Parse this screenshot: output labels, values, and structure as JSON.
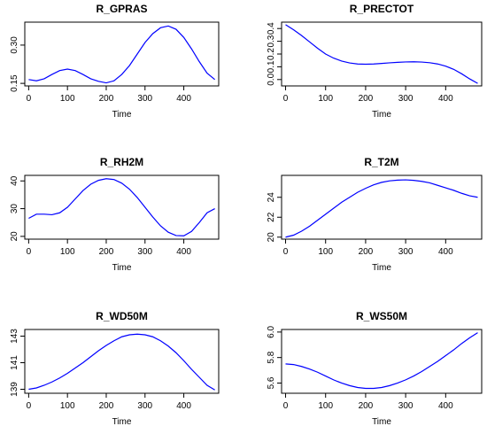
{
  "chart_data": [
    {
      "type": "line",
      "title": "R_GPRAS",
      "xlabel": "Time",
      "ylabel": "",
      "xlim": [
        -10,
        490
      ],
      "ylim": [
        0.14,
        0.39
      ],
      "xticks": [
        0,
        100,
        200,
        300,
        400
      ],
      "yticks": [
        0.15,
        0.3
      ],
      "ytick_labels": [
        "0.15",
        "0.30"
      ],
      "series": [
        {
          "x": [
            0,
            20,
            40,
            60,
            80,
            100,
            120,
            140,
            160,
            180,
            200,
            220,
            240,
            260,
            280,
            300,
            320,
            340,
            360,
            380,
            400,
            420,
            440,
            460,
            480
          ],
          "values": [
            0.165,
            0.16,
            0.168,
            0.185,
            0.2,
            0.206,
            0.2,
            0.185,
            0.168,
            0.158,
            0.152,
            0.16,
            0.185,
            0.22,
            0.265,
            0.31,
            0.345,
            0.368,
            0.375,
            0.362,
            0.33,
            0.285,
            0.235,
            0.19,
            0.165
          ]
        }
      ]
    },
    {
      "type": "line",
      "title": "R_PRECTOT",
      "xlabel": "Time",
      "ylabel": "",
      "xlim": [
        -10,
        490
      ],
      "ylim": [
        -0.05,
        0.45
      ],
      "xticks": [
        0,
        100,
        200,
        300,
        400
      ],
      "yticks": [
        0.0,
        0.1,
        0.2,
        0.3,
        0.4
      ],
      "ytick_labels": [
        "0.0",
        "0.1",
        "0.2",
        "0.3",
        "0.4"
      ],
      "series": [
        {
          "x": [
            0,
            20,
            40,
            60,
            80,
            100,
            120,
            140,
            160,
            180,
            200,
            220,
            240,
            260,
            280,
            300,
            320,
            340,
            360,
            380,
            400,
            420,
            440,
            460,
            480
          ],
          "values": [
            0.43,
            0.39,
            0.345,
            0.295,
            0.245,
            0.2,
            0.168,
            0.145,
            0.13,
            0.122,
            0.12,
            0.122,
            0.126,
            0.131,
            0.135,
            0.138,
            0.139,
            0.137,
            0.132,
            0.122,
            0.105,
            0.08,
            0.045,
            0.005,
            -0.03
          ]
        }
      ]
    },
    {
      "type": "line",
      "title": "R_RH2M",
      "xlabel": "Time",
      "ylabel": "",
      "xlim": [
        -10,
        490
      ],
      "ylim": [
        19,
        42
      ],
      "xticks": [
        0,
        100,
        200,
        300,
        400
      ],
      "yticks": [
        20,
        30,
        40
      ],
      "ytick_labels": [
        "20",
        "30",
        "40"
      ],
      "series": [
        {
          "x": [
            0,
            20,
            40,
            60,
            80,
            100,
            120,
            140,
            160,
            180,
            200,
            220,
            240,
            260,
            280,
            300,
            320,
            340,
            360,
            380,
            400,
            420,
            440,
            460,
            480
          ],
          "values": [
            26.5,
            28.0,
            28.0,
            27.8,
            28.5,
            30.5,
            33.5,
            36.5,
            38.8,
            40.2,
            40.8,
            40.5,
            39.2,
            37.0,
            34.0,
            30.5,
            27.0,
            23.8,
            21.5,
            20.3,
            20.2,
            21.8,
            25.0,
            28.5,
            30.0
          ]
        }
      ]
    },
    {
      "type": "line",
      "title": "R_T2M",
      "xlabel": "Time",
      "ylabel": "",
      "xlim": [
        -10,
        490
      ],
      "ylim": [
        19.8,
        26.2
      ],
      "xticks": [
        0,
        100,
        200,
        300,
        400
      ],
      "yticks": [
        20,
        22,
        24
      ],
      "ytick_labels": [
        "20",
        "22",
        "24"
      ],
      "series": [
        {
          "x": [
            0,
            20,
            40,
            60,
            80,
            100,
            120,
            140,
            160,
            180,
            200,
            220,
            240,
            260,
            280,
            300,
            320,
            340,
            360,
            380,
            400,
            420,
            440,
            460,
            480
          ],
          "values": [
            20.0,
            20.2,
            20.6,
            21.1,
            21.7,
            22.3,
            22.9,
            23.5,
            24.0,
            24.5,
            24.9,
            25.25,
            25.5,
            25.65,
            25.72,
            25.75,
            25.7,
            25.6,
            25.45,
            25.2,
            24.95,
            24.7,
            24.4,
            24.15,
            24.0
          ]
        }
      ]
    },
    {
      "type": "line",
      "title": "R_WD50M",
      "xlabel": "Time",
      "ylabel": "",
      "xlim": [
        -10,
        490
      ],
      "ylim": [
        138.7,
        143.5
      ],
      "xticks": [
        0,
        100,
        200,
        300,
        400
      ],
      "yticks": [
        139,
        141,
        143
      ],
      "ytick_labels": [
        "139",
        "141",
        "143"
      ],
      "series": [
        {
          "x": [
            0,
            20,
            40,
            60,
            80,
            100,
            120,
            140,
            160,
            180,
            200,
            220,
            240,
            260,
            280,
            300,
            320,
            340,
            360,
            380,
            400,
            420,
            440,
            460,
            480
          ],
          "values": [
            139.0,
            139.1,
            139.3,
            139.55,
            139.85,
            140.2,
            140.6,
            141.0,
            141.45,
            141.9,
            142.3,
            142.65,
            142.95,
            143.1,
            143.15,
            143.1,
            142.95,
            142.65,
            142.25,
            141.75,
            141.15,
            140.5,
            139.9,
            139.3,
            138.95
          ]
        }
      ]
    },
    {
      "type": "line",
      "title": "R_WS50M",
      "xlabel": "Time",
      "ylabel": "",
      "xlim": [
        -10,
        490
      ],
      "ylim": [
        5.52,
        6.02
      ],
      "xticks": [
        0,
        100,
        200,
        300,
        400
      ],
      "yticks": [
        5.6,
        5.8,
        6.0
      ],
      "ytick_labels": [
        "5.6",
        "5.8",
        "6.0"
      ],
      "series": [
        {
          "x": [
            0,
            20,
            40,
            60,
            80,
            100,
            120,
            140,
            160,
            180,
            200,
            220,
            240,
            260,
            280,
            300,
            320,
            340,
            360,
            380,
            400,
            420,
            440,
            460,
            480
          ],
          "values": [
            5.75,
            5.745,
            5.73,
            5.71,
            5.685,
            5.655,
            5.625,
            5.6,
            5.58,
            5.565,
            5.558,
            5.558,
            5.565,
            5.58,
            5.6,
            5.625,
            5.655,
            5.69,
            5.73,
            5.77,
            5.815,
            5.86,
            5.91,
            5.955,
            5.995
          ]
        }
      ]
    }
  ]
}
